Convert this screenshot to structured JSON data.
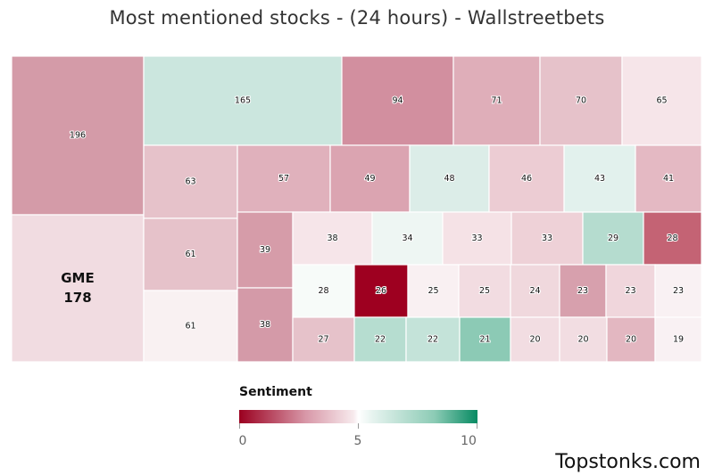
{
  "title": "Most mentioned stocks - (24 hours) - Wallstreetbets",
  "legend": {
    "title": "Sentiment",
    "ticks": [
      "0",
      "5",
      "10"
    ]
  },
  "brand": "Topstonks.com",
  "chart_data": {
    "type": "treemap",
    "color_scale": {
      "min": 0,
      "mid": 5,
      "max": 10,
      "low_color": "#9b0020",
      "mid_color": "#ffffff",
      "high_color": "#068a62"
    },
    "cells": [
      {
        "label": "",
        "value": 196,
        "color": "#d49ba8"
      },
      {
        "label": "GME",
        "value": 178,
        "color": "#f1dce1"
      },
      {
        "label": "",
        "value": 165,
        "color": "#cbe6de"
      },
      {
        "label": "",
        "value": 94,
        "color": "#d28f9f"
      },
      {
        "label": "",
        "value": 71,
        "color": "#dfaeb9"
      },
      {
        "label": "",
        "value": 70,
        "color": "#e6c2ca"
      },
      {
        "label": "",
        "value": 65,
        "color": "#f6e5e9"
      },
      {
        "label": "",
        "value": 63,
        "color": "#e6c2ca"
      },
      {
        "label": "",
        "value": 61,
        "color": "#e6c2ca"
      },
      {
        "label": "",
        "value": 61,
        "color": "#f9f1f2"
      },
      {
        "label": "",
        "value": 57,
        "color": "#e0b1bc"
      },
      {
        "label": "",
        "value": 49,
        "color": "#dba4b1"
      },
      {
        "label": "",
        "value": 48,
        "color": "#dcede8"
      },
      {
        "label": "",
        "value": 46,
        "color": "#ecccd3"
      },
      {
        "label": "",
        "value": 43,
        "color": "#e2f1ed"
      },
      {
        "label": "",
        "value": 41,
        "color": "#e4b9c3"
      },
      {
        "label": "",
        "value": 39,
        "color": "#d69ca9"
      },
      {
        "label": "",
        "value": 38,
        "color": "#d49aa8"
      },
      {
        "label": "",
        "value": 38,
        "color": "#f6e5e9"
      },
      {
        "label": "",
        "value": 34,
        "color": "#eef6f3"
      },
      {
        "label": "",
        "value": 33,
        "color": "#f5e2e6"
      },
      {
        "label": "",
        "value": 33,
        "color": "#eed1d7"
      },
      {
        "label": "",
        "value": 29,
        "color": "#b5dccf"
      },
      {
        "label": "",
        "value": 28,
        "color": "#c46374"
      },
      {
        "label": "",
        "value": 28,
        "color": "#f7fbf9"
      },
      {
        "label": "",
        "value": 27,
        "color": "#e6c2ca"
      },
      {
        "label": "",
        "value": 26,
        "color": "#9e0020"
      },
      {
        "label": "",
        "value": 25,
        "color": "#f9f0f2"
      },
      {
        "label": "",
        "value": 25,
        "color": "#f2dce1"
      },
      {
        "label": "",
        "value": 24,
        "color": "#f0d8dd"
      },
      {
        "label": "",
        "value": 23,
        "color": "#d7a0ad"
      },
      {
        "label": "",
        "value": 23,
        "color": "#f0d6dc"
      },
      {
        "label": "",
        "value": 23,
        "color": "#f9f1f3"
      },
      {
        "label": "",
        "value": 22,
        "color": "#b6ddd0"
      },
      {
        "label": "",
        "value": 22,
        "color": "#c4e3d9"
      },
      {
        "label": "",
        "value": 21,
        "color": "#8ccab5"
      },
      {
        "label": "",
        "value": 20,
        "color": "#f2dde2"
      },
      {
        "label": "",
        "value": 20,
        "color": "#f2dde2"
      },
      {
        "label": "",
        "value": 20,
        "color": "#e3b7c1"
      },
      {
        "label": "",
        "value": 19,
        "color": "#f9f1f3"
      }
    ]
  }
}
